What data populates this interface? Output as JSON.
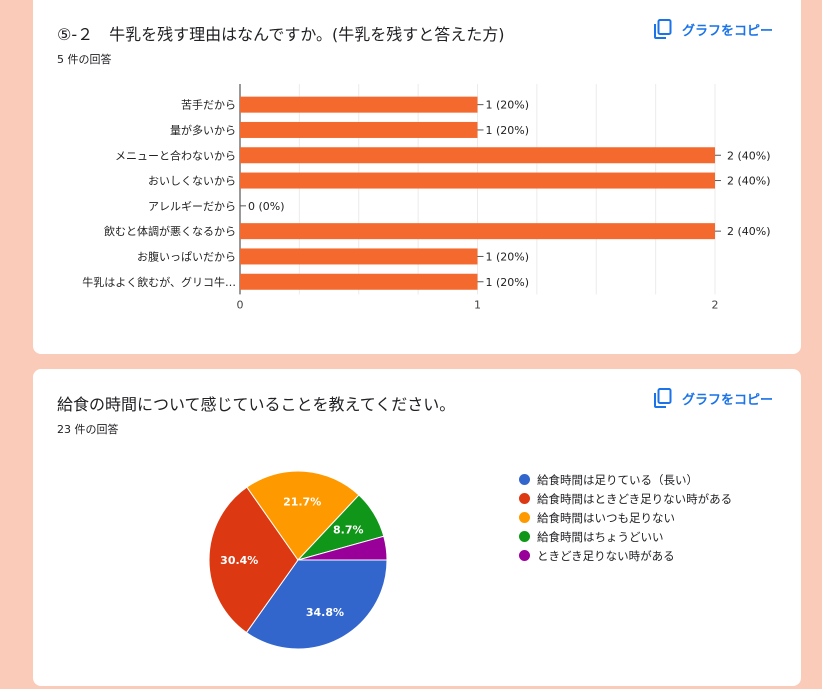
{
  "card1": {
    "title": "⑤-２　牛乳を残す理由はなんですか。(牛乳を残すと答えた方)",
    "response_count": "5 件の回答",
    "copy_label": "グラフをコピー",
    "copy_icon": "copy-icon"
  },
  "card2": {
    "title": "給食の時間について感じていることを教えてください。",
    "response_count": "23 件の回答",
    "copy_label": "グラフをコピー",
    "copy_icon": "copy-icon"
  },
  "colors": {
    "bar": "#f4692e",
    "link": "#1a73e8",
    "background": "#f9cbb8",
    "pie": [
      "#3366cc",
      "#dc3912",
      "#ff9900",
      "#109618",
      "#990099"
    ]
  },
  "chart_data": [
    {
      "type": "bar",
      "orientation": "horizontal",
      "categories": [
        "苦手だから",
        "量が多いから",
        "メニューと合わないから",
        "おいしくないから",
        "アレルギーだから",
        "飲むと体調が悪くなるから",
        "お腹いっぱいだから",
        "牛乳はよく飲むが、グリコ牛…"
      ],
      "values": [
        1,
        1,
        2,
        2,
        0,
        2,
        1,
        1
      ],
      "data_labels": [
        "1 (20%)",
        "1 (20%)",
        "2 (40%)",
        "2 (40%)",
        "0 (0%)",
        "2 (40%)",
        "1 (20%)",
        "1 (20%)"
      ],
      "xlim": [
        0,
        2
      ],
      "xticks": [
        "0",
        "1",
        "2"
      ],
      "grid": true
    },
    {
      "type": "pie",
      "labels": [
        "給食時間は足りている（長い）",
        "給食時間はときどき足りない時がある",
        "給食時間はいつも足りない",
        "給食時間はちょうどいい",
        "ときどき足りない時がある"
      ],
      "values": [
        34.8,
        30.4,
        21.7,
        8.7,
        4.3
      ],
      "slice_labels": [
        "34.8%",
        "30.4%",
        "21.7%",
        "8.7%",
        ""
      ],
      "legend_position": "right"
    }
  ]
}
